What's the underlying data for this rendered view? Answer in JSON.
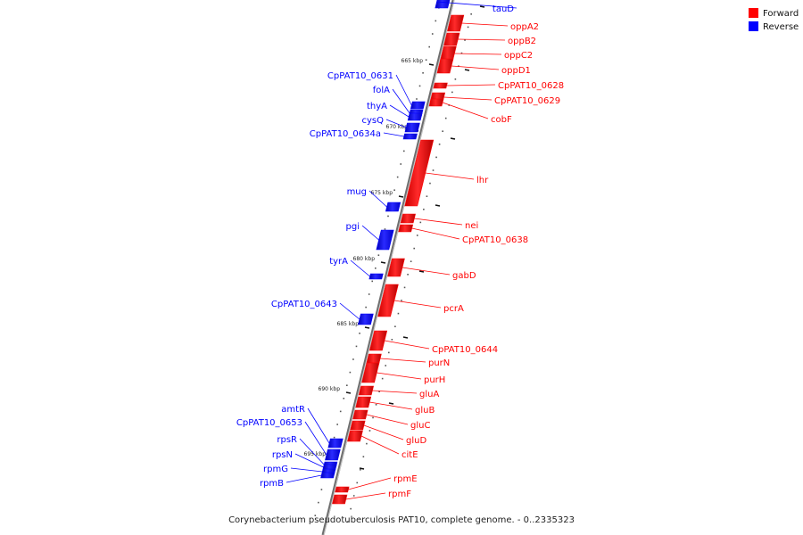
{
  "legend": {
    "items": [
      {
        "label": "Forward",
        "color": "#ff0000"
      },
      {
        "label": "Reverse",
        "color": "#0000ff"
      }
    ]
  },
  "caption": "Corynebacterium pseudotuberculosis PAT10, complete genome. - 0..2335323",
  "colors": {
    "forward": "#ff0000",
    "reverse": "#0000ff",
    "backbone": "#888888"
  },
  "ticks": [
    {
      "label": "665 kbp"
    },
    {
      "label": "670 kbp"
    },
    {
      "label": "675 kbp"
    },
    {
      "label": "680 kbp"
    },
    {
      "label": "685 kbp"
    },
    {
      "label": "690 kbp"
    },
    {
      "label": "695 kbp"
    }
  ],
  "genes": [
    {
      "name": "tauD",
      "strand": "reverse"
    },
    {
      "name": "oppA2",
      "strand": "forward"
    },
    {
      "name": "oppB2",
      "strand": "forward"
    },
    {
      "name": "oppC2",
      "strand": "forward"
    },
    {
      "name": "oppD1",
      "strand": "forward"
    },
    {
      "name": "CpPAT10_0628",
      "strand": "forward"
    },
    {
      "name": "CpPAT10_0629",
      "strand": "forward"
    },
    {
      "name": "cobF",
      "strand": "forward"
    },
    {
      "name": "CpPAT10_0631",
      "strand": "reverse"
    },
    {
      "name": "folA",
      "strand": "reverse"
    },
    {
      "name": "thyA",
      "strand": "reverse"
    },
    {
      "name": "cysQ",
      "strand": "reverse"
    },
    {
      "name": "CpPAT10_0634a",
      "strand": "reverse"
    },
    {
      "name": "lhr",
      "strand": "forward"
    },
    {
      "name": "mug",
      "strand": "reverse"
    },
    {
      "name": "nei",
      "strand": "forward"
    },
    {
      "name": "pgi",
      "strand": "reverse"
    },
    {
      "name": "CpPAT10_0638",
      "strand": "forward"
    },
    {
      "name": "tyrA",
      "strand": "reverse"
    },
    {
      "name": "gabD",
      "strand": "forward"
    },
    {
      "name": "pcrA",
      "strand": "forward"
    },
    {
      "name": "CpPAT10_0643",
      "strand": "reverse"
    },
    {
      "name": "CpPAT10_0644",
      "strand": "forward"
    },
    {
      "name": "purN",
      "strand": "forward"
    },
    {
      "name": "purH",
      "strand": "forward"
    },
    {
      "name": "gluA",
      "strand": "forward"
    },
    {
      "name": "gluB",
      "strand": "forward"
    },
    {
      "name": "gluC",
      "strand": "forward"
    },
    {
      "name": "gluD",
      "strand": "forward"
    },
    {
      "name": "citE",
      "strand": "forward"
    },
    {
      "name": "amtR",
      "strand": "reverse"
    },
    {
      "name": "CpPAT10_0653",
      "strand": "reverse"
    },
    {
      "name": "rpsR",
      "strand": "reverse"
    },
    {
      "name": "rpsN",
      "strand": "reverse"
    },
    {
      "name": "rpmG",
      "strand": "reverse"
    },
    {
      "name": "rpmB",
      "strand": "reverse"
    },
    {
      "name": "rpmE",
      "strand": "forward"
    },
    {
      "name": "rpmF",
      "strand": "forward"
    }
  ]
}
